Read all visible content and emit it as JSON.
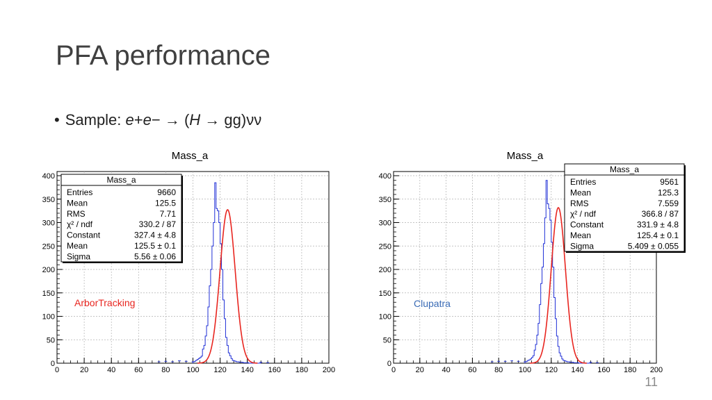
{
  "slide": {
    "title": "PFA performance",
    "bullet": {
      "prefix": "Sample: ",
      "e1": "e",
      "plus": "+",
      "e2": "e",
      "minus": "− → (",
      "H": "H",
      "rest": " → gg)νν"
    },
    "page_number": "11"
  },
  "chart_data": [
    {
      "type": "histogram",
      "title": "Mass_a",
      "annotation": "ArborTracking",
      "annotation_color": "#e8251f",
      "xlim": [
        0,
        200
      ],
      "ylim": [
        0,
        400
      ],
      "xticks": [
        0,
        20,
        40,
        60,
        80,
        100,
        120,
        140,
        160,
        180,
        200
      ],
      "yticks": [
        0,
        50,
        100,
        150,
        200,
        250,
        300,
        350,
        400
      ],
      "grid": true,
      "stats_box_position": "top-left",
      "hist_color": "#1f2fd6",
      "fit_color": "#e8251f",
      "fit": {
        "constant": 327.4,
        "mean": 125.5,
        "sigma": 5.56
      },
      "stats": {
        "header": "Mass_a",
        "rows": [
          {
            "label": "Entries",
            "value": "9660"
          },
          {
            "label": "Mean",
            "value": "125.5"
          },
          {
            "label": "RMS",
            "value": "7.71"
          },
          {
            "label": "χ² / ndf",
            "value": "330.2 / 87"
          },
          {
            "label": "Constant",
            "value": "327.4 ± 4.8"
          },
          {
            "label": "Mean",
            "value": "125.5 ± 0.1"
          },
          {
            "label": "Sigma",
            "value": "5.56 ± 0.06"
          }
        ]
      },
      "bins": {
        "low": 100,
        "width": 1,
        "values": [
          3,
          4,
          6,
          8,
          10,
          12,
          15,
          30,
          38,
          58,
          80,
          120,
          165,
          200,
          250,
          300,
          385,
          330,
          325,
          300,
          255,
          200,
          135,
          95,
          55,
          38,
          22,
          16,
          10,
          6,
          5,
          4,
          3,
          3,
          2,
          2,
          2,
          1,
          1,
          1,
          1,
          0,
          0,
          0,
          0,
          0,
          0,
          0,
          0,
          0
        ]
      },
      "tail": [
        {
          "x": 75,
          "y": 3
        },
        {
          "x": 80,
          "y": 4
        },
        {
          "x": 85,
          "y": 3
        },
        {
          "x": 90,
          "y": 5
        },
        {
          "x": 95,
          "y": 4
        },
        {
          "x": 100,
          "y": 3
        },
        {
          "x": 150,
          "y": 2
        },
        {
          "x": 155,
          "y": 1
        }
      ]
    },
    {
      "type": "histogram",
      "title": "Mass_a",
      "annotation": "Clupatra",
      "annotation_color": "#3a6bb5",
      "xlim": [
        0,
        200
      ],
      "ylim": [
        0,
        400
      ],
      "xticks": [
        0,
        20,
        40,
        60,
        80,
        100,
        120,
        140,
        160,
        180,
        200
      ],
      "yticks": [
        0,
        50,
        100,
        150,
        200,
        250,
        300,
        350,
        400
      ],
      "grid": true,
      "stats_box_position": "top-right",
      "hist_color": "#1f2fd6",
      "fit_color": "#e8251f",
      "fit": {
        "constant": 331.9,
        "mean": 125.4,
        "sigma": 5.409
      },
      "stats": {
        "header": "Mass_a",
        "rows": [
          {
            "label": "Entries",
            "value": "9561"
          },
          {
            "label": "Mean",
            "value": "125.3"
          },
          {
            "label": "RMS",
            "value": "7.559"
          },
          {
            "label": "χ² / ndf",
            "value": "366.8 / 87"
          },
          {
            "label": "Constant",
            "value": "331.9 ± 4.8"
          },
          {
            "label": "Mean",
            "value": "125.4 ± 0.1"
          },
          {
            "label": "Sigma",
            "value": "5.409 ± 0.055"
          }
        ]
      },
      "bins": {
        "low": 100,
        "width": 1,
        "values": [
          3,
          4,
          6,
          7,
          9,
          12,
          16,
          28,
          40,
          60,
          85,
          125,
          170,
          205,
          255,
          310,
          390,
          340,
          330,
          305,
          258,
          205,
          140,
          95,
          58,
          36,
          22,
          15,
          9,
          6,
          5,
          4,
          3,
          3,
          2,
          2,
          2,
          1,
          1,
          1,
          1,
          0,
          0,
          0,
          0,
          0,
          0,
          0,
          0,
          0
        ]
      },
      "tail": [
        {
          "x": 75,
          "y": 3
        },
        {
          "x": 80,
          "y": 4
        },
        {
          "x": 85,
          "y": 4
        },
        {
          "x": 90,
          "y": 5
        },
        {
          "x": 95,
          "y": 4
        },
        {
          "x": 100,
          "y": 3
        },
        {
          "x": 150,
          "y": 2
        },
        {
          "x": 155,
          "y": 1
        }
      ]
    }
  ]
}
